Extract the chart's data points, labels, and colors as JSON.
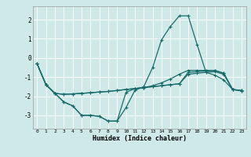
{
  "xlabel": "Humidex (Indice chaleur)",
  "xlim": [
    -0.5,
    23.5
  ],
  "ylim": [
    -3.7,
    2.7
  ],
  "xticks": [
    0,
    1,
    2,
    3,
    4,
    5,
    6,
    7,
    8,
    9,
    10,
    11,
    12,
    13,
    14,
    15,
    16,
    17,
    18,
    19,
    20,
    21,
    22,
    23
  ],
  "yticks": [
    -3,
    -2,
    -1,
    0,
    1,
    2
  ],
  "bg_color": "#cfe8e8",
  "grid_color": "#ffffff",
  "line_color": "#1a6b6b",
  "line1_x": [
    0,
    1,
    2,
    3,
    4,
    5,
    6,
    7,
    8,
    9,
    10,
    11,
    12,
    13,
    14,
    15,
    16,
    17,
    18,
    19,
    20,
    21,
    22,
    23
  ],
  "line1_y": [
    -0.3,
    -1.4,
    -1.85,
    -2.3,
    -2.5,
    -3.0,
    -3.0,
    -3.05,
    -3.3,
    -3.3,
    -2.6,
    -1.7,
    -1.5,
    -0.5,
    0.95,
    1.65,
    2.2,
    2.2,
    0.7,
    -0.75,
    -0.9,
    -1.15,
    -1.65,
    -1.7
  ],
  "line2_x": [
    0,
    1,
    2,
    3,
    4,
    5,
    6,
    7,
    8,
    9,
    10,
    11,
    12,
    13,
    14,
    15,
    16,
    17,
    18,
    19,
    20,
    21,
    22,
    23
  ],
  "line2_y": [
    -0.3,
    -1.4,
    -1.85,
    -2.3,
    -2.5,
    -3.0,
    -3.0,
    -3.05,
    -3.3,
    -3.3,
    -1.8,
    -1.6,
    -1.55,
    -1.45,
    -1.3,
    -1.1,
    -0.85,
    -0.65,
    -0.65,
    -0.65,
    -0.65,
    -0.8,
    -1.65,
    -1.7
  ],
  "line3_x": [
    0,
    1,
    2,
    3,
    4,
    5,
    6,
    7,
    8,
    9,
    10,
    11,
    12,
    13,
    14,
    15,
    16,
    17,
    18,
    19,
    20,
    21,
    22,
    23
  ],
  "line3_y": [
    -0.3,
    -1.4,
    -1.85,
    -1.9,
    -1.88,
    -1.85,
    -1.82,
    -1.78,
    -1.75,
    -1.7,
    -1.65,
    -1.6,
    -1.55,
    -1.5,
    -1.45,
    -1.4,
    -1.35,
    -0.85,
    -0.8,
    -0.75,
    -0.72,
    -0.85,
    -1.65,
    -1.72
  ],
  "line4_x": [
    0,
    1,
    2,
    3,
    4,
    5,
    6,
    7,
    8,
    9,
    10,
    11,
    12,
    13,
    14,
    15,
    16,
    17,
    18,
    19,
    20,
    21,
    22,
    23
  ],
  "line4_y": [
    -0.3,
    -1.4,
    -1.85,
    -1.9,
    -1.88,
    -1.85,
    -1.82,
    -1.78,
    -1.75,
    -1.7,
    -1.65,
    -1.6,
    -1.55,
    -1.5,
    -1.45,
    -1.4,
    -1.35,
    -0.75,
    -0.72,
    -0.68,
    -0.65,
    -0.8,
    -1.65,
    -1.72
  ]
}
